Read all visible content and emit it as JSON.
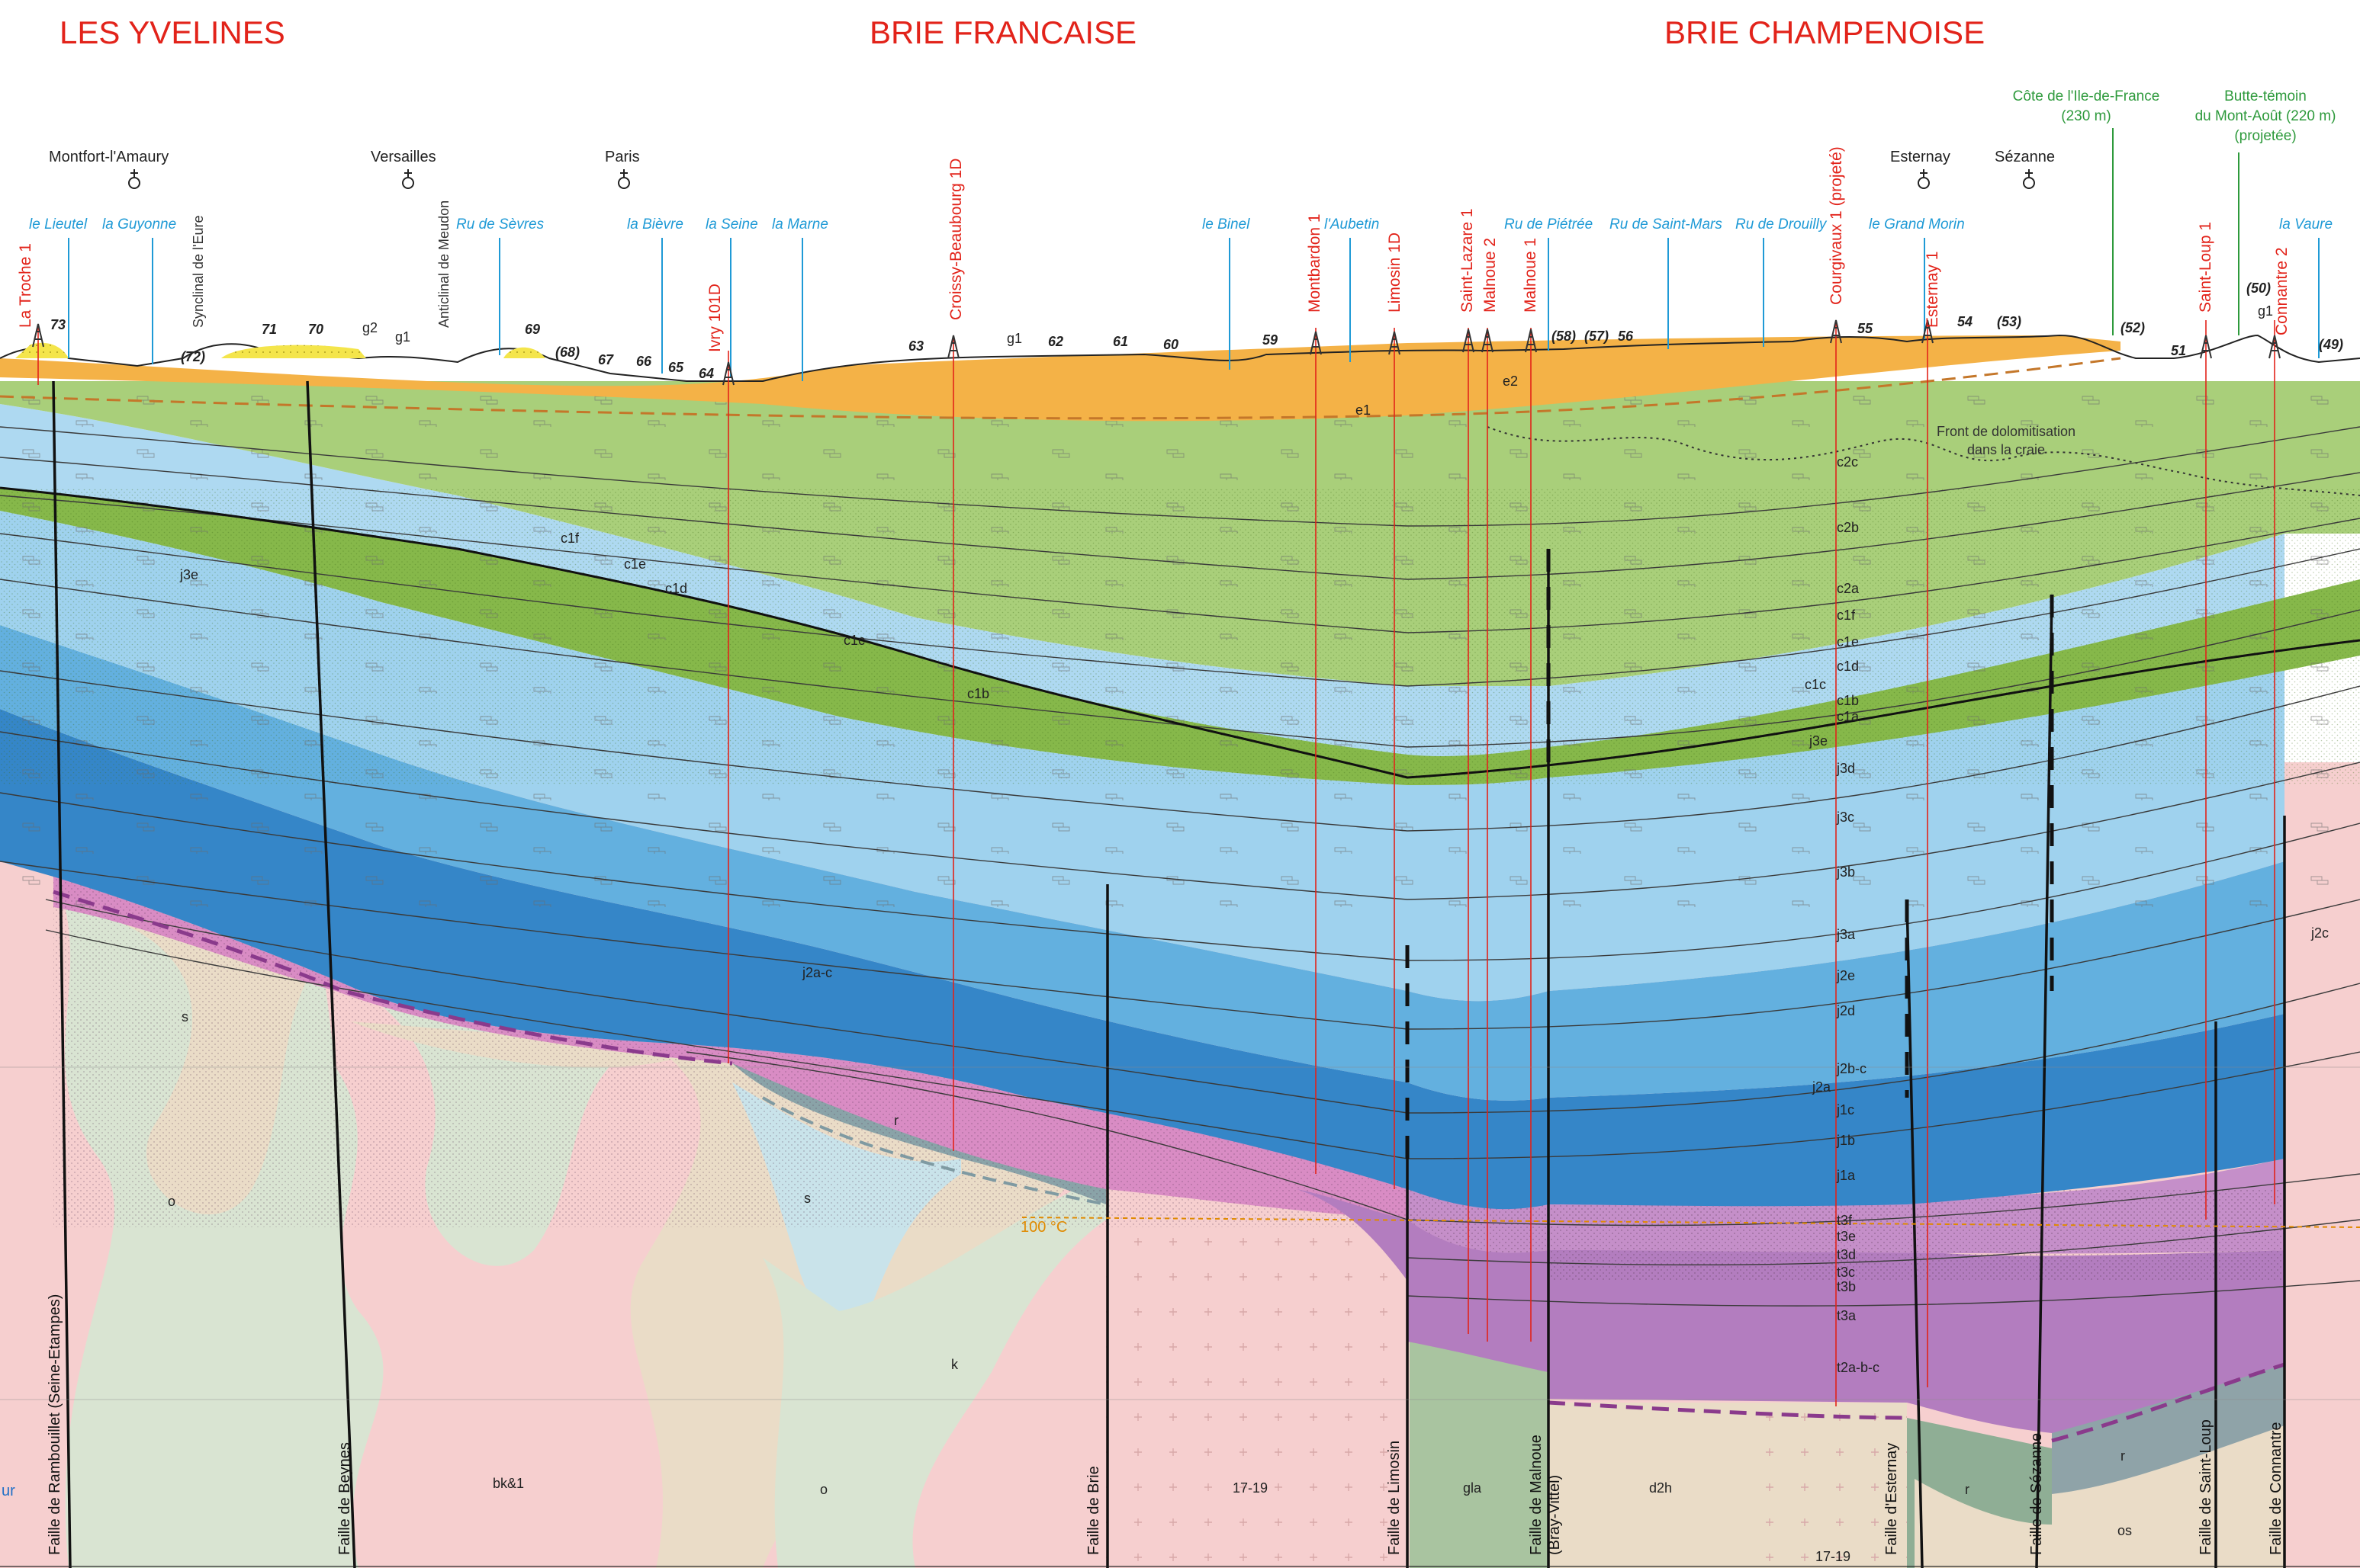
{
  "regions": [
    "LES YVELINES",
    "BRIE FRANCAISE",
    "BRIE CHAMPENOISE"
  ],
  "towns": [
    "Montfort-l'Amaury",
    "Versailles",
    "Paris",
    "Esternay",
    "Sézanne"
  ],
  "highpoints": {
    "cote": [
      "Côte de l'Ile-de-France",
      "(230 m)"
    ],
    "butte": [
      "Butte-témoin",
      "du Mont-Août (220 m)",
      "(projetée)"
    ]
  },
  "rivers": [
    "le Lieutel",
    "la Guyonne",
    "Ru de Sèvres",
    "la Bièvre",
    "la Seine",
    "la Marne",
    "le Binel",
    "l'Aubetin",
    "Ru de Piétrée",
    "Ru de Saint-Mars",
    "Ru de Drouilly",
    "le Grand Morin",
    "la Vaure"
  ],
  "structures": [
    "Synclinal de l'Eure",
    "Anticlinal de Meudon"
  ],
  "wells": [
    "La Troche 1",
    "Ivry 101D",
    "Croissy-Beaubourg 1D",
    "Montbardon 1",
    "Limosin 1D",
    "Saint-Lazare 1",
    "Malnoue 2",
    "Malnoue 1",
    "Courgivaux 1 (projeté)",
    "Esternay 1",
    "Saint-Loup 1",
    "Connantre 2"
  ],
  "altitudes": [
    "73",
    "(72)",
    "71",
    "70",
    "69",
    "(68)",
    "67",
    "66",
    "65",
    "64",
    "63",
    "62",
    "61",
    "60",
    "59",
    "(58)",
    "(57)",
    "56",
    "55",
    "54",
    "(53)",
    "(52)",
    "51",
    "(50)",
    "(49)"
  ],
  "surface_labels": [
    "g2",
    "g1",
    "g1",
    "g1"
  ],
  "layers_left": [
    "e1",
    "e2",
    "c1f",
    "c1e",
    "c1d",
    "c1c",
    "c1b",
    "j3e",
    "j2a-c",
    "j2c"
  ],
  "column_labels": [
    "c2c",
    "c2b",
    "c2a",
    "c1f",
    "c1e",
    "c1d",
    "c1c",
    "c1b",
    "c1a",
    "j3e",
    "j3d",
    "j3c",
    "j3b",
    "j3a",
    "j2e",
    "j2d",
    "j2b-c",
    "j2a",
    "j1c",
    "j1b",
    "j1a",
    "t3f",
    "t3e",
    "t3d",
    "t3c",
    "t3b",
    "t3a",
    "t2a-b-c"
  ],
  "basement_labels": [
    "s",
    "o",
    "r",
    "s",
    "k",
    "o",
    "bk&1",
    "17-19",
    "gla",
    "d2h",
    "17-19",
    "r",
    "r",
    "os"
  ],
  "dolomitisation": [
    "Front de dolomitisation",
    "dans la craie"
  ],
  "temperature": "100 °C",
  "faults": [
    "Faille de Rambouillet (Seine-Etampes)",
    "Faille de Beynes",
    "Faille de Brie",
    "Faille de Limosin",
    "Faille de Malnoue",
    "(Bray-Vittel)",
    "Faille d'Esternay",
    "Faille de Sézanne",
    "Faille de Saint-Loup",
    "Faille de Connantre"
  ],
  "edge_label": "ur",
  "colors": {
    "region_red": "#e2231a",
    "river_blue": "#1f9ad6",
    "green_label": "#2e9a3c",
    "tertiary_orange": "#f4b247",
    "chalk_green": "#a9cf7a",
    "chalk_dark": "#86b84a",
    "jurassic_light": "#9fd2ee",
    "jurassic_mid": "#63b0df",
    "jurassic_dark": "#3586c8",
    "lias_pink": "#d98cc4",
    "trias_purple": "#b37dbf",
    "basement_pink": "#f6cfcf",
    "basement_beige": "#eadcc7",
    "basement_green": "#d9e4d2",
    "basement_blue": "#c9e3ea",
    "basement_olive": "#a9c4a0",
    "isotherm": "#e08a00"
  }
}
